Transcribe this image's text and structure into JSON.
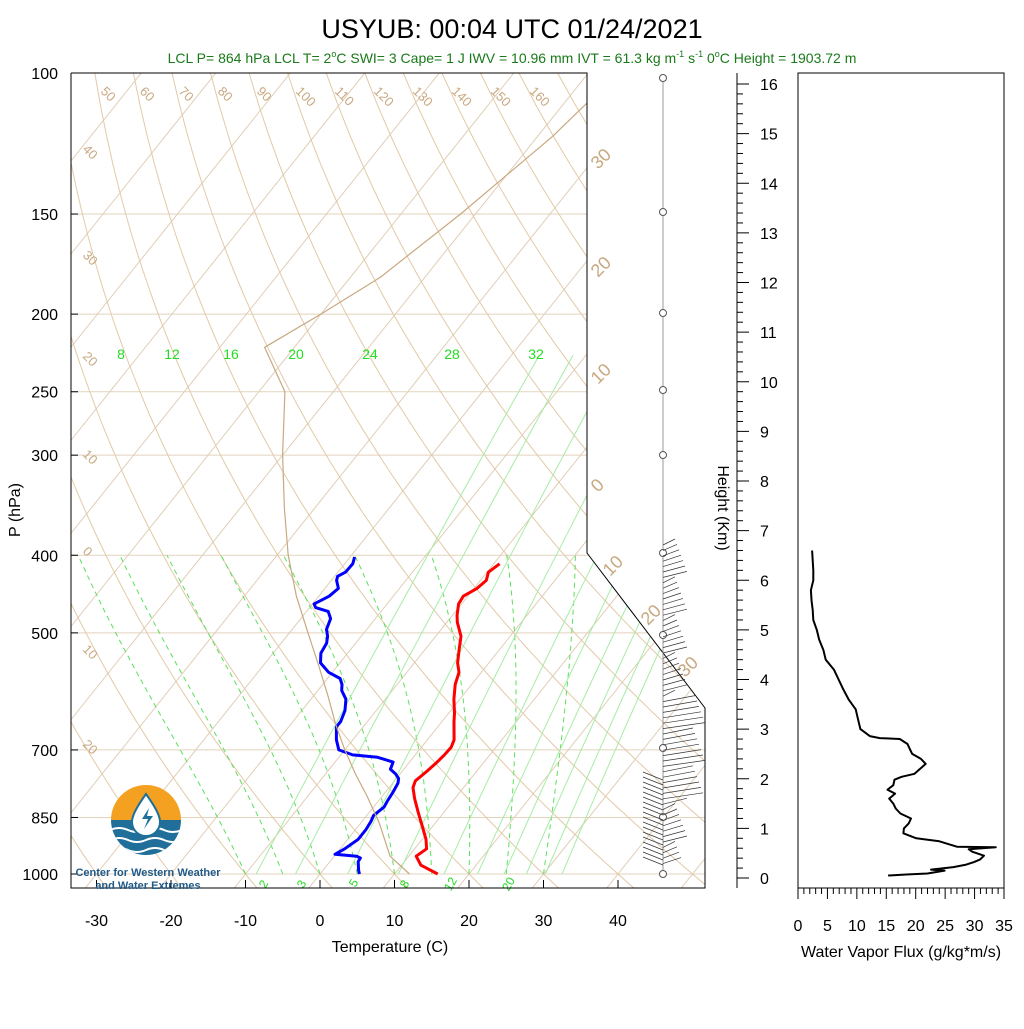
{
  "title": "USYUB: 00:04 UTC 01/24/2021",
  "subtitle": {
    "lcl_p": "LCL P= 864 hPa",
    "lcl_t_pre": "LCL T= 2",
    "lcl_t_sup": "o",
    "lcl_t_post": "C",
    "swi": "SWI= 3",
    "cape": "Cape= 1 J",
    "iwv": "IWV = 10.96 mm",
    "ivt_pre": "IVT = 61.3 kg m",
    "ivt_sup1": "-1",
    "ivt_mid": " s",
    "ivt_sup2": "-1",
    "zero_pre": "0",
    "zero_sup": "o",
    "zero_post": "C Height = 1903.72 m"
  },
  "logo": {
    "line1": "Center for Western Weather",
    "line2": "and Water Extremes",
    "colors": {
      "orange": "#f4a020",
      "blue": "#1f6f9a",
      "teal": "#2a8fb0"
    }
  },
  "skewt": {
    "ylabel": "P (hPa)",
    "xlabel": "Temperature (C)",
    "pressure_ticks": [
      100,
      150,
      200,
      250,
      300,
      400,
      500,
      700,
      850,
      1000
    ],
    "temp_ticks": [
      -30,
      -20,
      -10,
      0,
      10,
      20,
      30,
      40
    ],
    "isotherm_labels": [
      "50",
      "60",
      "70",
      "80",
      "90",
      "100",
      "110",
      "120",
      "130",
      "140",
      "150",
      "160",
      "40",
      "30",
      "20",
      "10",
      "0",
      "10",
      "20"
    ],
    "right_labels": [
      "30",
      "20",
      "10",
      "0",
      "10",
      "20",
      "30"
    ],
    "mixing_ratio_labels": [
      "8",
      "12",
      "16",
      "20",
      "24",
      "28",
      "32"
    ],
    "mixing_ratio_bottom": [
      "2",
      "3",
      "5",
      "8",
      "12",
      "20"
    ],
    "colors": {
      "temperature": "#ff0000",
      "dewpoint": "#0000ff",
      "parcel": "#c8a880",
      "isotherm": "#e0cdb4",
      "mixing": "#5ae05a"
    }
  },
  "height_axis": {
    "label": "Height (Km)",
    "ticks": [
      0,
      1,
      2,
      3,
      4,
      5,
      6,
      7,
      8,
      9,
      10,
      11,
      12,
      13,
      14,
      15,
      16
    ]
  },
  "flux_panel": {
    "xlabel": "Water Vapor Flux (g/kg*m/s)",
    "ticks": [
      0,
      5,
      10,
      15,
      20,
      25,
      30,
      35
    ]
  },
  "chart_data": [
    {
      "type": "line",
      "title": "USYUB: 00:04 UTC 01/24/2021",
      "xlabel": "Temperature (C)",
      "ylabel": "P (hPa)",
      "xlim": [
        -34,
        50
      ],
      "ylim": [
        1000,
        100
      ],
      "yscale": "log",
      "series": [
        {
          "name": "temperature",
          "color": "#ff0000",
          "points": [
            [
              15.8,
              1000
            ],
            [
              12.6,
              975
            ],
            [
              11.0,
              950
            ],
            [
              11.6,
              930
            ],
            [
              10.5,
              905
            ],
            [
              8.5,
              870
            ],
            [
              6.4,
              835
            ],
            [
              4.6,
              805
            ],
            [
              3.2,
              780
            ],
            [
              2.8,
              765
            ],
            [
              3.3,
              745
            ],
            [
              3.7,
              725
            ],
            [
              3.9,
              710
            ],
            [
              4.0,
              695
            ],
            [
              3.6,
              680
            ],
            [
              1.6,
              645
            ],
            [
              0.8,
              630
            ],
            [
              -0.8,
              605
            ],
            [
              -2.2,
              580
            ],
            [
              -3.0,
              560
            ],
            [
              -4.2,
              545
            ],
            [
              -5.4,
              525
            ],
            [
              -6.6,
              505
            ],
            [
              -8.6,
              485
            ],
            [
              -9.4,
              475
            ],
            [
              -10.4,
              460
            ],
            [
              -10.6,
              450
            ],
            [
              -9.6,
              440
            ],
            [
              -9.2,
              430
            ],
            [
              -9.8,
              420
            ],
            [
              -9.2,
              410
            ]
          ]
        },
        {
          "name": "dewpoint",
          "color": "#0000ff",
          "points": [
            [
              5.3,
              1000
            ],
            [
              4.8,
              990
            ],
            [
              3.8,
              965
            ],
            [
              3.7,
              955
            ],
            [
              3.0,
              950
            ],
            [
              -0.1,
              945
            ],
            [
              0.6,
              930
            ],
            [
              1.0,
              918
            ],
            [
              1.4,
              905
            ],
            [
              1.4,
              880
            ],
            [
              1.2,
              860
            ],
            [
              0.9,
              845
            ],
            [
              1.4,
              825
            ],
            [
              1.2,
              810
            ],
            [
              1.0,
              790
            ],
            [
              0.7,
              770
            ],
            [
              0.3,
              760
            ],
            [
              -0.6,
              750
            ],
            [
              -1.8,
              740
            ],
            [
              -2.2,
              725
            ],
            [
              -4.8,
              715
            ],
            [
              -8.4,
              710
            ],
            [
              -10.8,
              700
            ],
            [
              -12.2,
              680
            ],
            [
              -13.6,
              655
            ],
            [
              -13.6,
              645
            ],
            [
              -14.2,
              625
            ],
            [
              -15.3,
              605
            ],
            [
              -16.8,
              590
            ],
            [
              -17.4,
              580
            ],
            [
              -18.3,
              570
            ],
            [
              -20.5,
              560
            ],
            [
              -22.6,
              545
            ],
            [
              -23.6,
              530
            ],
            [
              -23.9,
              515
            ],
            [
              -24.5,
              505
            ],
            [
              -25.4,
              495
            ],
            [
              -26.0,
              480
            ],
            [
              -27.1,
              470
            ],
            [
              -29.2,
              465
            ],
            [
              -29.8,
              460
            ],
            [
              -28.6,
              450
            ],
            [
              -28.2,
              440
            ],
            [
              -29.3,
              430
            ],
            [
              -29.6,
              425
            ],
            [
              -29.0,
              420
            ],
            [
              -28.9,
              410
            ],
            [
              -29.4,
              402
            ]
          ]
        },
        {
          "name": "parcel",
          "color": "#c8a880",
          "points": [
            [
              12.0,
              1000
            ],
            [
              7.5,
              950
            ],
            [
              2.5,
              864
            ],
            [
              -2.0,
              800
            ],
            [
              -6.0,
              750
            ],
            [
              -10.0,
              700
            ],
            [
              -14.0,
              650
            ],
            [
              -18.0,
              600
            ],
            [
              -22.5,
              550
            ],
            [
              -27.5,
              500
            ],
            [
              -33.0,
              450
            ],
            [
              -38.5,
              400
            ],
            [
              -44.0,
              350
            ],
            [
              -50.0,
              300
            ],
            [
              -56.5,
              250
            ],
            [
              -64.0,
              220
            ],
            [
              -60.0,
              200
            ],
            [
              -56.0,
              180
            ],
            [
              -52.0,
              150
            ],
            [
              -48.0,
              120
            ],
            [
              -46.0,
              100
            ]
          ]
        }
      ]
    },
    {
      "type": "line",
      "xlabel": "Water Vapor Flux (g/kg*m/s)",
      "ylabel": "Height (Km)",
      "xlim": [
        0,
        35
      ],
      "ylim": [
        0,
        16.5
      ],
      "series": [
        {
          "name": "water vapor flux",
          "color": "#000000",
          "points": [
            [
              15.3,
              0.05
            ],
            [
              18.4,
              0.07
            ],
            [
              22.0,
              0.09
            ],
            [
              24.9,
              0.15
            ],
            [
              22.6,
              0.17
            ],
            [
              26.4,
              0.22
            ],
            [
              28.6,
              0.27
            ],
            [
              29.9,
              0.32
            ],
            [
              30.9,
              0.37
            ],
            [
              31.6,
              0.45
            ],
            [
              29.6,
              0.53
            ],
            [
              29.0,
              0.58
            ],
            [
              33.6,
              0.62
            ],
            [
              27.0,
              0.63
            ],
            [
              24.0,
              0.74
            ],
            [
              20.1,
              0.8
            ],
            [
              17.9,
              0.9
            ],
            [
              18.0,
              1.0
            ],
            [
              18.8,
              1.1
            ],
            [
              19.2,
              1.2
            ],
            [
              17.4,
              1.3
            ],
            [
              16.6,
              1.4
            ],
            [
              16.2,
              1.5
            ],
            [
              15.5,
              1.6
            ],
            [
              16.5,
              1.7
            ],
            [
              15.2,
              1.78
            ],
            [
              16.2,
              1.87
            ],
            [
              16.4,
              1.98
            ],
            [
              17.6,
              2.04
            ],
            [
              19.8,
              2.1
            ],
            [
              21.7,
              2.3
            ],
            [
              20.9,
              2.4
            ],
            [
              19.4,
              2.5
            ],
            [
              19.0,
              2.6
            ],
            [
              18.6,
              2.7
            ],
            [
              17.3,
              2.8
            ],
            [
              13.9,
              2.82
            ],
            [
              12.2,
              2.86
            ],
            [
              10.6,
              3.0
            ],
            [
              10.2,
              3.2
            ],
            [
              9.8,
              3.4
            ],
            [
              8.6,
              3.6
            ],
            [
              7.7,
              3.8
            ],
            [
              6.9,
              4.0
            ],
            [
              6.1,
              4.2
            ],
            [
              4.7,
              4.4
            ],
            [
              4.3,
              4.6
            ],
            [
              3.6,
              4.8
            ],
            [
              3.2,
              5.0
            ],
            [
              2.6,
              5.2
            ],
            [
              2.5,
              5.4
            ],
            [
              2.3,
              5.6
            ],
            [
              2.2,
              5.8
            ],
            [
              2.6,
              6.0
            ],
            [
              2.6,
              6.2
            ],
            [
              2.4,
              6.6
            ]
          ]
        }
      ]
    }
  ]
}
